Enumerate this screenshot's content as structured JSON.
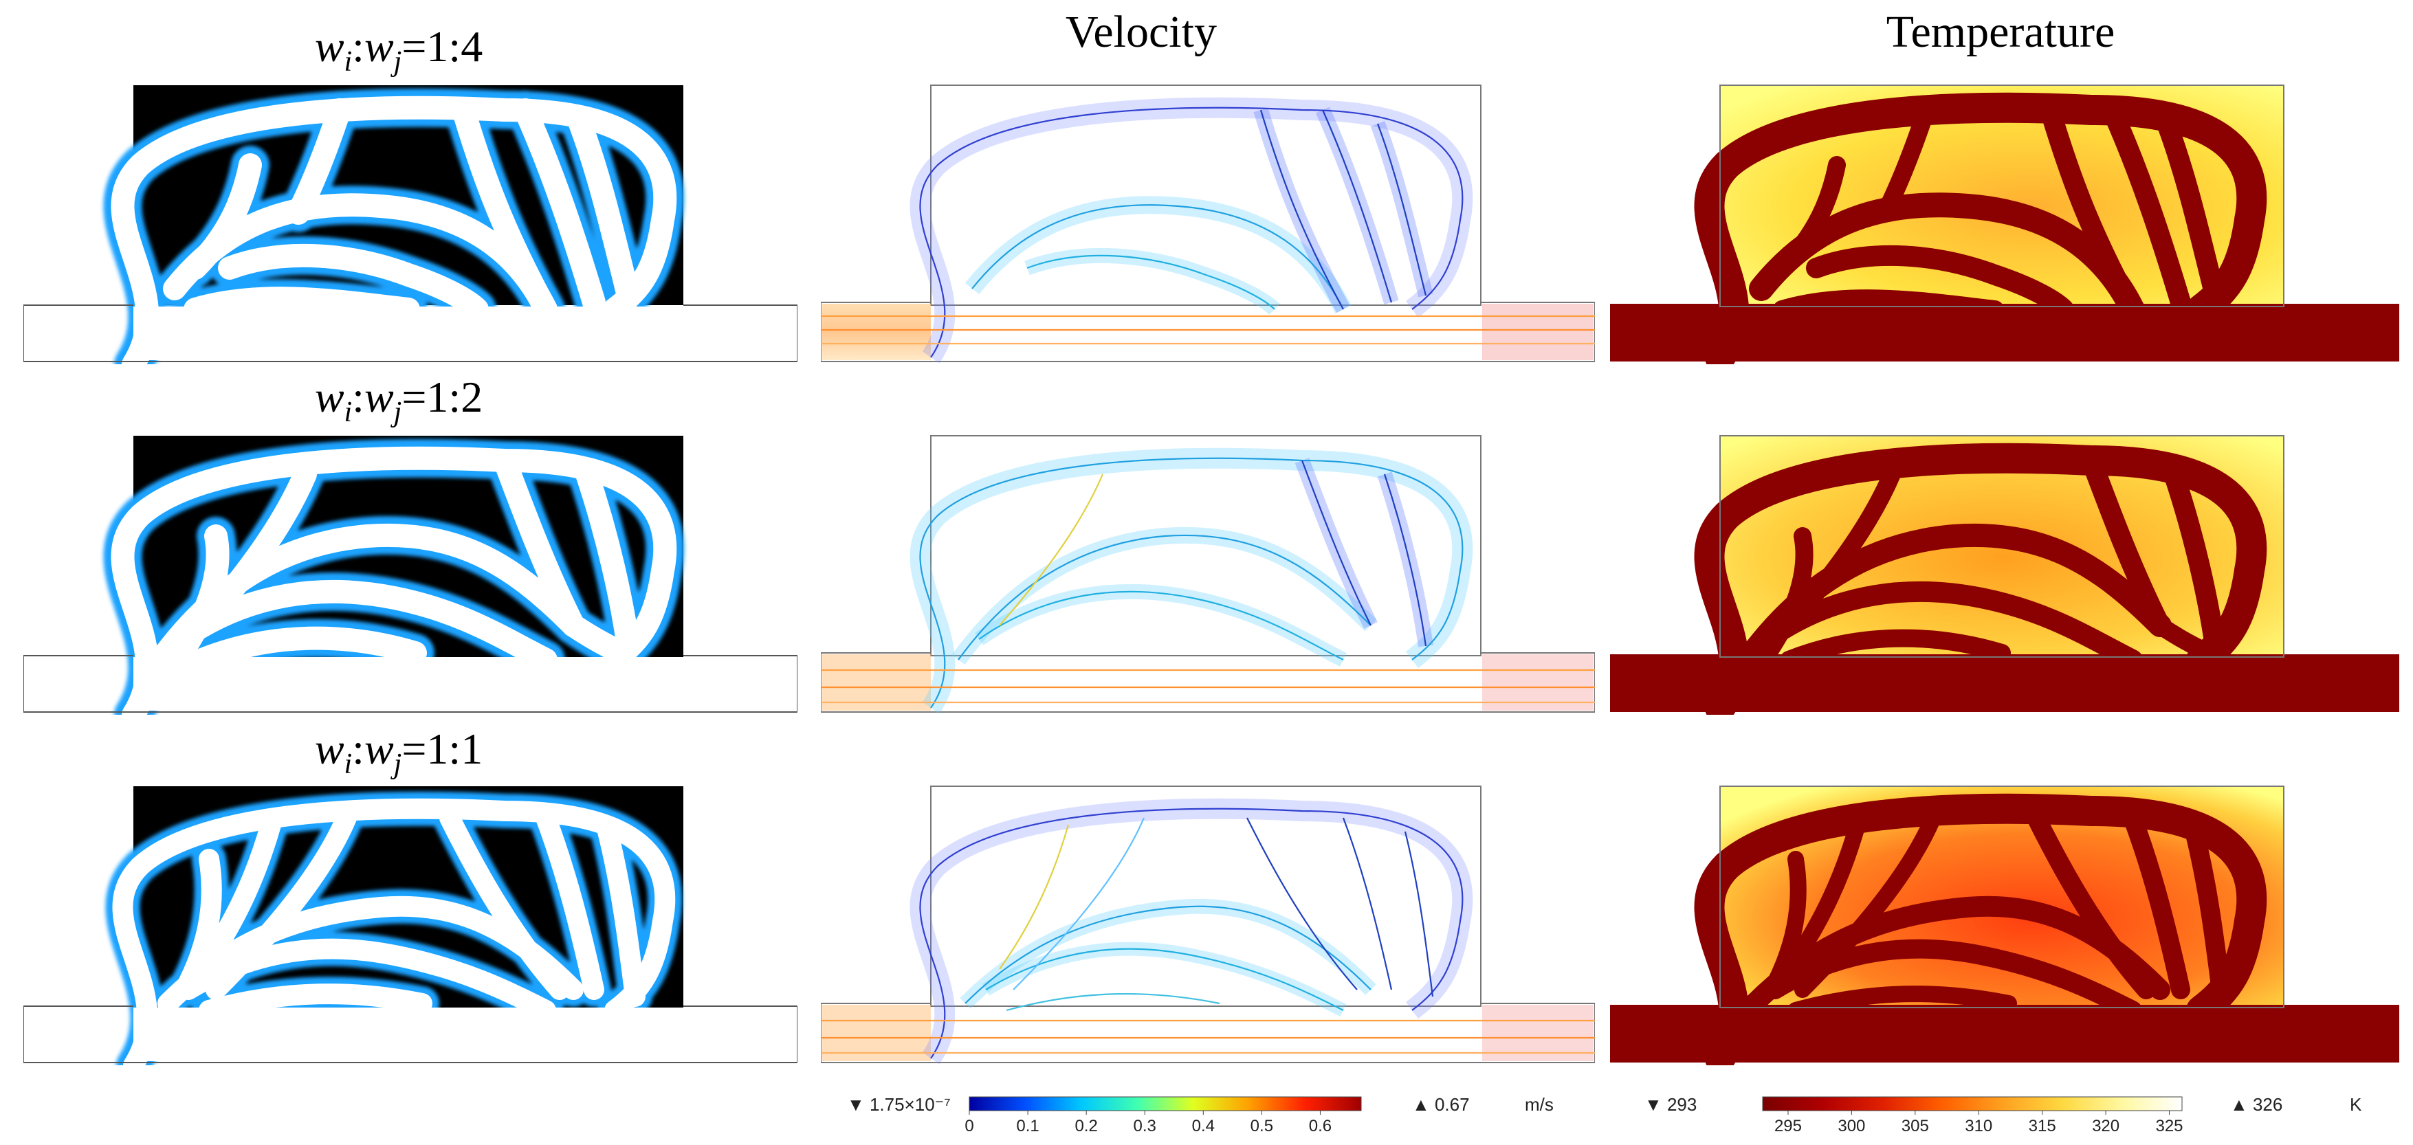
{
  "headers": {
    "velocity": "Velocity",
    "temperature": "Temperature"
  },
  "rows": [
    {
      "label_w1": "w",
      "sub1": "i",
      "sep": ":",
      "label_w2": "w",
      "sub2": "j",
      "ratio": "=1:4"
    },
    {
      "label_w1": "w",
      "sub1": "i",
      "sep": ":",
      "label_w2": "w",
      "sub2": "j",
      "ratio": "=1:2"
    },
    {
      "label_w1": "w",
      "sub1": "i",
      "sep": ":",
      "label_w2": "w",
      "sub2": "j",
      "ratio": "=1:1"
    }
  ],
  "velocity_colorbar": {
    "min_marker": "▼ 1.75×10⁻⁷",
    "max_marker": "▲ 0.67",
    "unit": "m/s",
    "ticks": [
      "0",
      "0.1",
      "0.2",
      "0.3",
      "0.4",
      "0.5",
      "0.6"
    ],
    "tick_values": [
      0,
      0.1,
      0.2,
      0.3,
      0.4,
      0.5,
      0.6
    ],
    "range": [
      0,
      0.67
    ],
    "colors": [
      "#0000a0",
      "#0050ff",
      "#00c8ff",
      "#40ffb0",
      "#e0ff20",
      "#ffa000",
      "#ff2000",
      "#a00000"
    ]
  },
  "temperature_colorbar": {
    "min_marker": "▼ 293",
    "max_marker": "▲ 326",
    "unit": "K",
    "ticks": [
      "295",
      "300",
      "305",
      "310",
      "315",
      "320",
      "325"
    ],
    "tick_values": [
      295,
      300,
      305,
      310,
      315,
      320,
      325
    ],
    "range": [
      293,
      326
    ],
    "colors": [
      "#7a0000",
      "#b00000",
      "#e02000",
      "#ff6000",
      "#ffa020",
      "#ffd840",
      "#fff8a0",
      "#ffffff"
    ]
  },
  "colors": {
    "design_fluid": "#ffffff",
    "design_solid": "#000000",
    "design_edge": "#1aa3ff",
    "temp_channel": "#8b0000",
    "temp_hot_bg": "#ffff70"
  }
}
